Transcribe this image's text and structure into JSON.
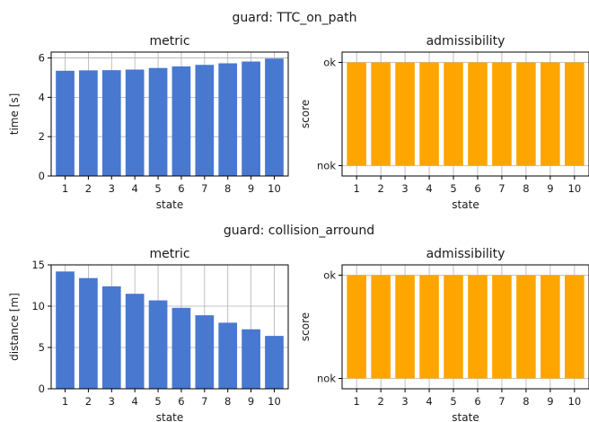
{
  "figure": {
    "sections": [
      {
        "title": "guard: TTC_on_path"
      },
      {
        "title": "guard: collision_arround"
      }
    ]
  },
  "chart_data": [
    {
      "type": "bar",
      "title": "metric",
      "xlabel": "state",
      "ylabel": "time [s]",
      "categories": [
        "1",
        "2",
        "3",
        "4",
        "5",
        "6",
        "7",
        "8",
        "9",
        "10"
      ],
      "values": [
        5.35,
        5.37,
        5.38,
        5.41,
        5.49,
        5.57,
        5.65,
        5.73,
        5.82,
        5.97
      ],
      "ylim": [
        0,
        6.3
      ],
      "yticks": [
        0,
        2,
        4,
        6
      ],
      "grid": true,
      "color": "#4878d0"
    },
    {
      "type": "bar",
      "title": "admissibility",
      "xlabel": "state",
      "ylabel": "score",
      "categories": [
        "1",
        "2",
        "3",
        "4",
        "5",
        "6",
        "7",
        "8",
        "9",
        "10"
      ],
      "values": [
        1,
        1,
        1,
        1,
        1,
        1,
        1,
        1,
        1,
        1
      ],
      "ylim": [
        -0.1,
        1.1
      ],
      "yticks": [
        0,
        1
      ],
      "yticklabels": [
        "nok",
        "ok"
      ],
      "grid": true,
      "color": "#ffa500"
    },
    {
      "type": "bar",
      "title": "metric",
      "xlabel": "state",
      "ylabel": "distance [m]",
      "categories": [
        "1",
        "2",
        "3",
        "4",
        "5",
        "6",
        "7",
        "8",
        "9",
        "10"
      ],
      "values": [
        14.2,
        13.4,
        12.4,
        11.5,
        10.7,
        9.8,
        8.9,
        8.0,
        7.2,
        6.4
      ],
      "ylim": [
        0,
        15
      ],
      "yticks": [
        0,
        5,
        10,
        15
      ],
      "grid": true,
      "color": "#4878d0"
    },
    {
      "type": "bar",
      "title": "admissibility",
      "xlabel": "state",
      "ylabel": "score",
      "categories": [
        "1",
        "2",
        "3",
        "4",
        "5",
        "6",
        "7",
        "8",
        "9",
        "10"
      ],
      "values": [
        1,
        1,
        1,
        1,
        1,
        1,
        1,
        1,
        1,
        1
      ],
      "ylim": [
        -0.1,
        1.1
      ],
      "yticks": [
        0,
        1
      ],
      "yticklabels": [
        "nok",
        "ok"
      ],
      "grid": true,
      "color": "#ffa500"
    }
  ]
}
